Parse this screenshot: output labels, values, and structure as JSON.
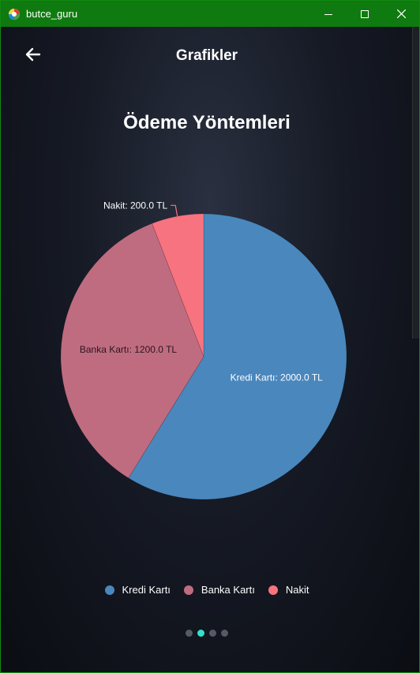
{
  "window": {
    "title": "butce_guru",
    "controls": [
      "minimize",
      "maximize",
      "close"
    ]
  },
  "appbar": {
    "back_icon": "arrow-left-icon",
    "title": "Grafikler"
  },
  "colors": {
    "titlebar": "#0f7a0f",
    "kredi_karti": "#4a87bd",
    "banka_karti": "#c06c80",
    "nakit": "#f7737f",
    "active_page_dot": "#35e0c9",
    "inactive_page_dot": "#555b66"
  },
  "chart_data": {
    "type": "pie",
    "title": "Ödeme Yöntemleri",
    "categories": [
      "Kredi Kartı",
      "Banka Kartı",
      "Nakit"
    ],
    "values": [
      2000.0,
      1200.0,
      200.0
    ],
    "data_labels": [
      "Kredi Kartı: 2000.0 TL",
      "Banka Kartı: 1200.0 TL",
      "Nakit: 200.0 TL"
    ],
    "colors": [
      "#4a87bd",
      "#c06c80",
      "#f7737f"
    ],
    "legend": "bottom"
  },
  "legend": [
    {
      "label": "Kredi Kartı",
      "color": "#4a87bd"
    },
    {
      "label": "Banka Kartı",
      "color": "#c06c80"
    },
    {
      "label": "Nakit",
      "color": "#f7737f"
    }
  ],
  "pagination": {
    "pages": 4,
    "active_index": 1
  }
}
